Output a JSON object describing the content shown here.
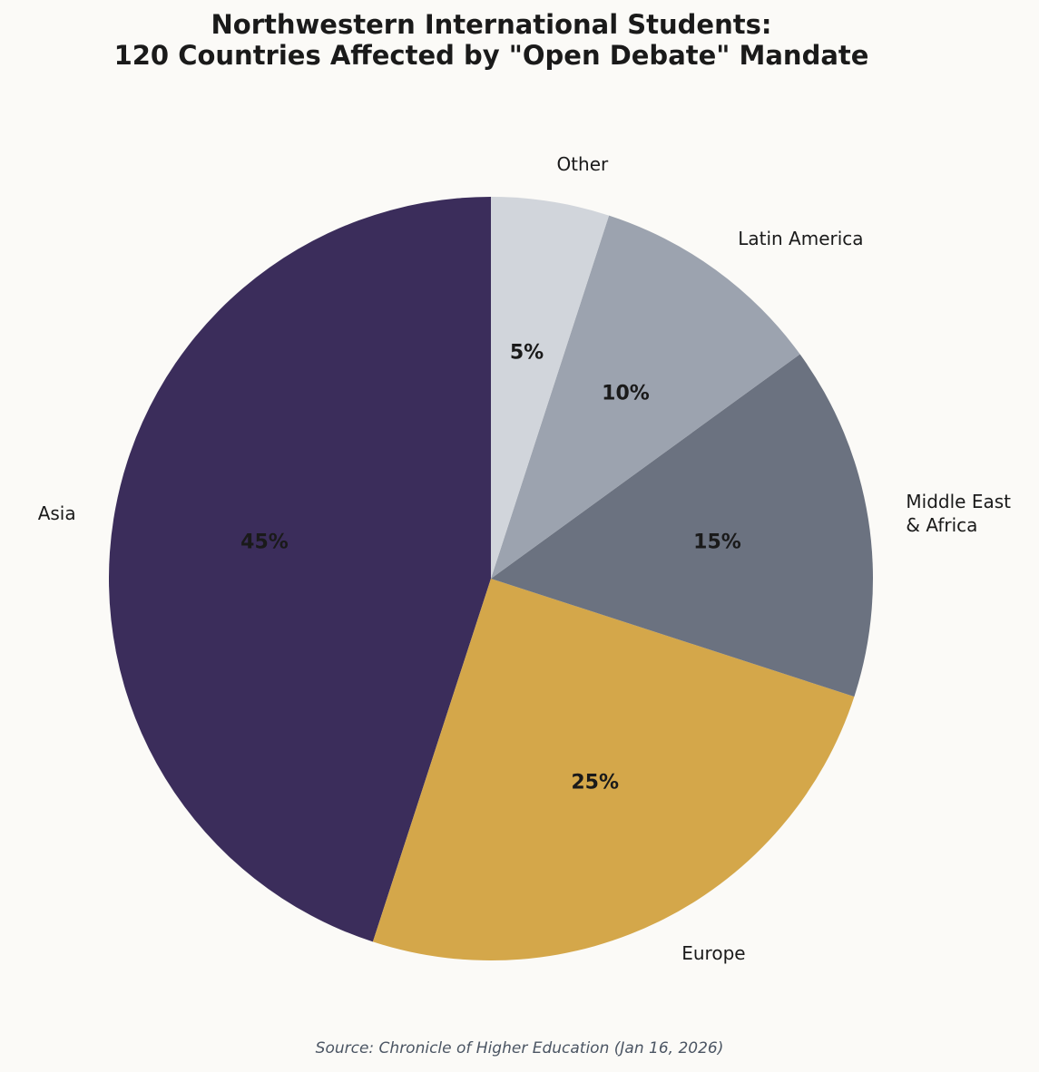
{
  "chart_data": {
    "type": "pie",
    "title": "Northwestern International Students:\n120 Countries Affected by \"Open Debate\" Mandate",
    "categories": [
      "Asia",
      "Europe",
      "Middle East\n& Africa",
      "Latin America",
      "Other"
    ],
    "values": [
      45,
      25,
      15,
      10,
      5
    ],
    "value_labels": [
      "45%",
      "25%",
      "15%",
      "10%",
      "5%"
    ],
    "colors": [
      "#3b2d5b",
      "#d4a74a",
      "#6b7280",
      "#9ca3af",
      "#d1d5db"
    ],
    "source": "Source: Chronicle of Higher Education (Jan 16, 2026)"
  }
}
